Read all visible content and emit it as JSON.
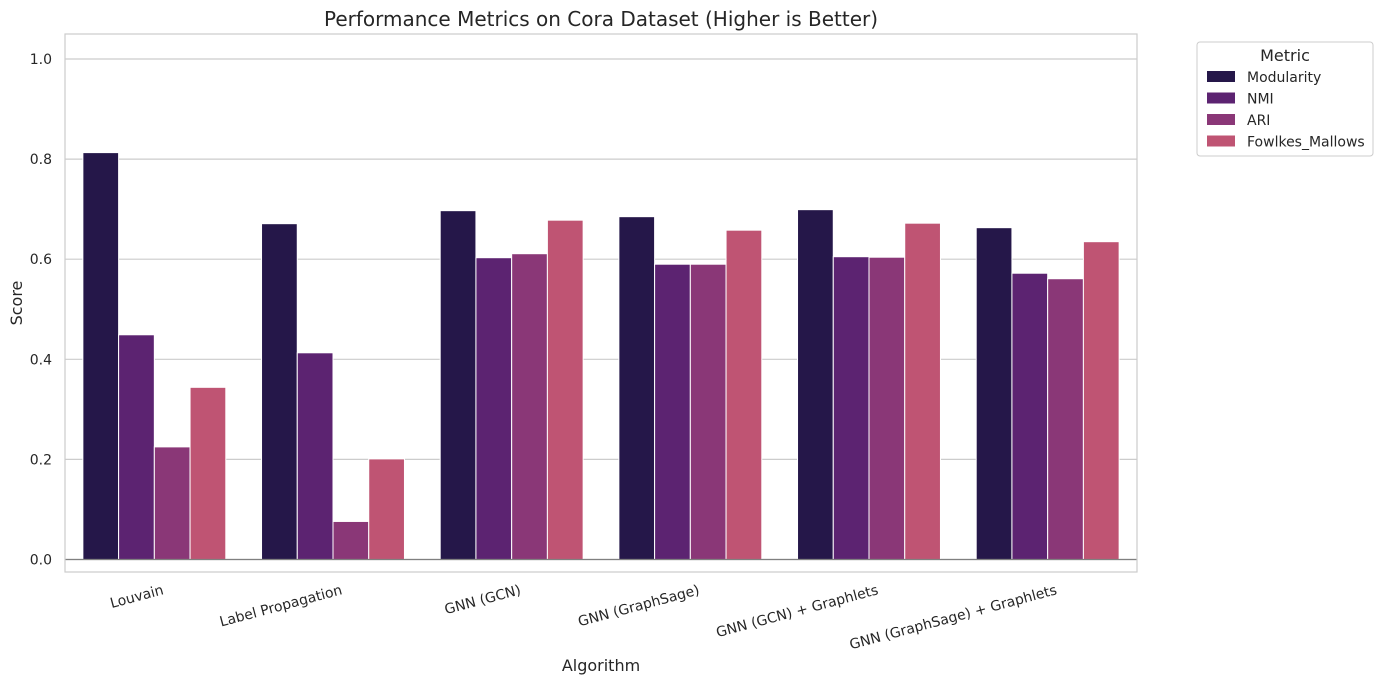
{
  "chart_data": {
    "type": "bar",
    "title": "Performance Metrics on Cora Dataset (Higher is Better)",
    "xlabel": "Algorithm",
    "ylabel": "Score",
    "ylim": [
      -0.025,
      1.05
    ],
    "yticks": [
      "0.0",
      "0.2",
      "0.4",
      "0.6",
      "0.8",
      "1.0"
    ],
    "ytick_values": [
      0.0,
      0.2,
      0.4,
      0.6,
      0.8,
      1.0
    ],
    "grid": true,
    "legend_title": "Metric",
    "legend_position": "outside-top-right",
    "categories": [
      "Louvain",
      "Label Propagation",
      "GNN (GCN)",
      "GNN (GraphSage)",
      "GNN (GCN) + Graphlets",
      "GNN (GraphSage) + Graphlets"
    ],
    "series": [
      {
        "name": "Modularity",
        "color": "#251749",
        "values": [
          0.813,
          0.671,
          0.697,
          0.685,
          0.699,
          0.663
        ]
      },
      {
        "name": "NMI",
        "color": "#5c2371",
        "values": [
          0.449,
          0.413,
          0.603,
          0.59,
          0.605,
          0.572
        ]
      },
      {
        "name": "ARI",
        "color": "#8a3777",
        "values": [
          0.225,
          0.076,
          0.611,
          0.59,
          0.604,
          0.561
        ]
      },
      {
        "name": "Fowlkes_Mallows",
        "color": "#bf5473",
        "values": [
          0.344,
          0.201,
          0.678,
          0.658,
          0.672,
          0.635
        ]
      }
    ]
  }
}
